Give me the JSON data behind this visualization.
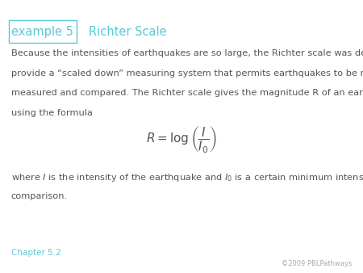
{
  "background_color": "#ffffff",
  "header_box_text": "example 5",
  "header_box_color": "#5bc8d5",
  "header_title": "Richter Scale",
  "header_title_color": "#5bc8d5",
  "body_line1": "Because the intensities of earthquakes are so large, the Richter scale was developed to",
  "body_line2": "provide a “scaled down” measuring system that permits earthquakes to be more easily",
  "body_line3": "measured and compared. The Richter scale gives the magnitude R of an earthquake",
  "body_line4": "using the formula",
  "footer_line1": "where $I$ is the intensity of the earthquake and $I_0$ is a certain minimum intensity used for",
  "footer_line2": "comparison.",
  "chapter_text": "Chapter 5.2",
  "chapter_color": "#5bc8d5",
  "copyright_text": "©2009 PBLPathways",
  "copyright_color": "#aaaaaa",
  "text_color": "#555555",
  "body_fontsize": 8.2,
  "header_fontsize": 10.5,
  "formula_fontsize": 11
}
